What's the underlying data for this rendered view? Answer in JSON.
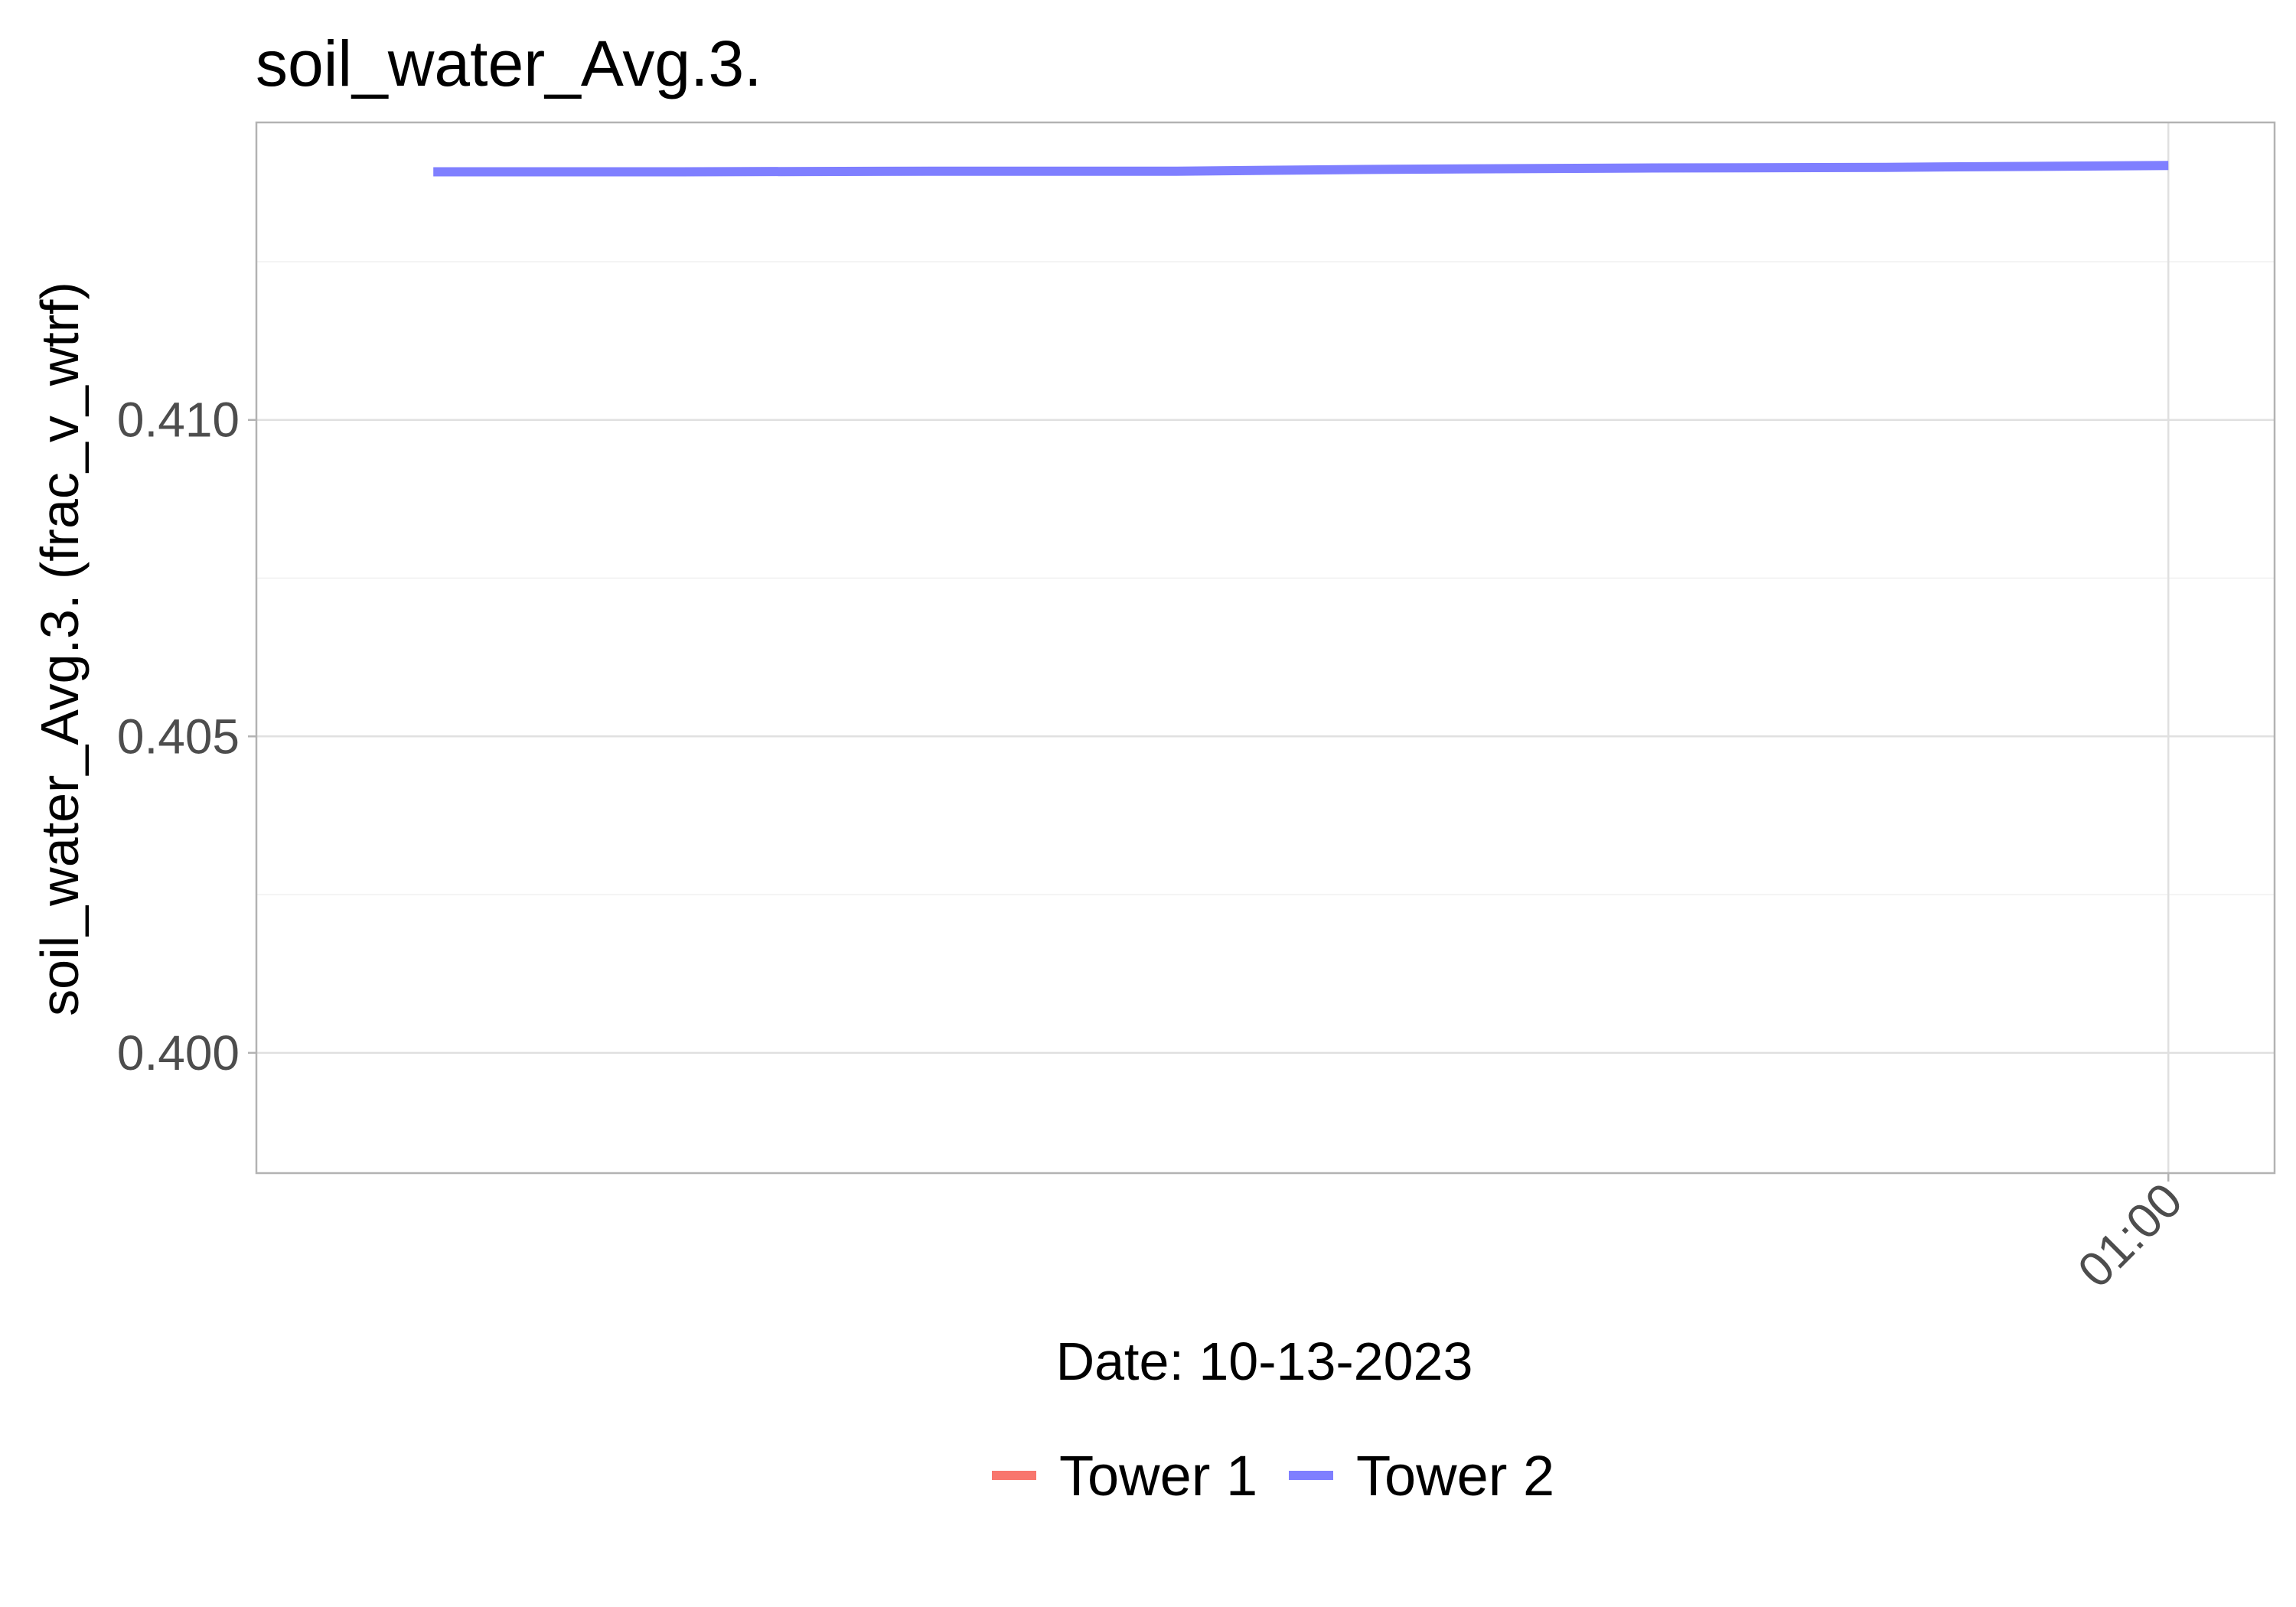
{
  "chart_data": {
    "type": "line",
    "title": "soil_water_Avg.3.",
    "xlabel": "Date: 10-13-2023",
    "ylabel": "soil_water_Avg.3. (frac_v_wtrf)",
    "x_ticks": [
      "01:00"
    ],
    "x_tick_values": [
      1.0
    ],
    "xlim": [
      0.1,
      1.05
    ],
    "ylim": [
      0.3981,
      0.4147
    ],
    "y_ticks": [
      0.4,
      0.405,
      0.41
    ],
    "y_tick_labels": [
      "0.400",
      "0.405",
      "0.410"
    ],
    "grid": true,
    "legend_position": "bottom",
    "series": [
      {
        "name": "Tower 1",
        "color": "#F8766D",
        "x": [],
        "y": []
      },
      {
        "name": "Tower 2",
        "color": "#7F7FFF",
        "x": [
          0.1833,
          0.3,
          0.4167,
          0.5333,
          0.6333,
          0.75,
          0.8667,
          1.0
        ],
        "y": [
          0.41392,
          0.41392,
          0.41393,
          0.41393,
          0.41396,
          0.41398,
          0.41399,
          0.41402
        ]
      }
    ]
  }
}
